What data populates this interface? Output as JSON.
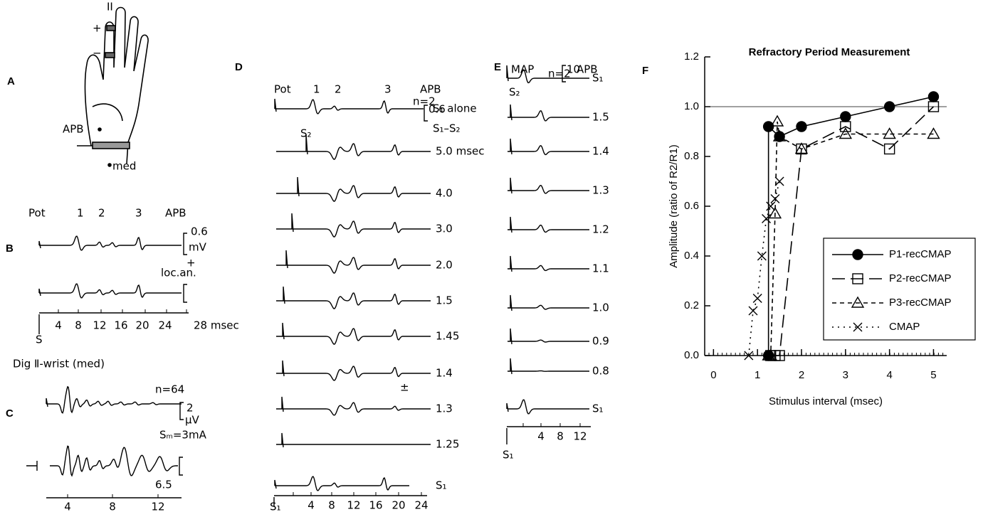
{
  "panels": {
    "A": {
      "letter": "A",
      "labels": [
        "II",
        "+",
        "−",
        "APB",
        "med"
      ]
    },
    "B": {
      "letter": "B",
      "header": [
        "Pot",
        "1",
        "2",
        "3",
        "APB"
      ],
      "scale": [
        "0.6",
        "mV"
      ],
      "note": "loc.an.",
      "sign": "+",
      "ticks": [
        "4",
        "8",
        "12",
        "16",
        "20",
        "24",
        "28 msec"
      ],
      "stimulus": "S"
    },
    "C": {
      "letter": "C",
      "caption": "Dig Ⅱ-wrist (med)",
      "n": "n=64",
      "scale": [
        "2",
        "μV"
      ],
      "stim": "Sₘ=3mA",
      "gain": "6.5",
      "ticks": [
        "4",
        "8",
        "12"
      ]
    },
    "D": {
      "letter": "D",
      "header": [
        "Pot",
        "1",
        "2",
        "3",
        "APB"
      ],
      "n": "n=2",
      "scale": "0.6",
      "rows": [
        "S₁ alone",
        "S₁–S₂",
        "5.0 msec",
        "4.0",
        "3.0",
        "2.0",
        "1.5",
        "1.45",
        "1.4",
        "1.3",
        "1.25",
        "S₁"
      ],
      "s2": "S₂",
      "pm": "±",
      "ticks": [
        "4",
        "8",
        "12",
        "16",
        "20",
        "24"
      ],
      "stimulus": "S₁"
    },
    "E": {
      "letter": "E",
      "header": [
        "MAP",
        "APB"
      ],
      "n": "n=2",
      "scale": "10",
      "rows": [
        "S₁",
        "1.5",
        "1.4",
        "1.3",
        "1.2",
        "1.1",
        "1.0",
        "0.9",
        "0.8",
        "S₁"
      ],
      "s2": "S₂",
      "ticks": [
        "4",
        "8",
        "12"
      ],
      "stimulus": "S₁"
    },
    "F": {
      "letter": "F"
    }
  },
  "chart_data": {
    "type": "line",
    "title": "Refractory Period Measurement",
    "x_label": "Stimulus interval (msec)",
    "y_label": "Amplitude (ratio of R2/R1)",
    "xlim": [
      -0.2,
      5.3
    ],
    "ylim": [
      0,
      1.2
    ],
    "xticks": [
      0,
      1,
      2,
      3,
      4,
      5
    ],
    "yticks": [
      {
        "value": 0,
        "label": "0.0"
      },
      0.2,
      0.4,
      0.6,
      0.8,
      {
        "value": 1,
        "label": "1.0"
      },
      1.2
    ],
    "hline": 1,
    "legend": "right",
    "series": [
      {
        "name": "P1-recCMAP",
        "color": "#000000",
        "marker": "circle",
        "dash": "solid",
        "x": [
          1.25,
          1.25,
          1.5,
          2,
          3,
          4,
          5
        ],
        "values": [
          0,
          0.92,
          0.88,
          0.92,
          0.96,
          1.0,
          1.04
        ]
      },
      {
        "name": "P2-recCMAP",
        "color": "#000000",
        "marker": "square",
        "dash": "long",
        "x": [
          1.3,
          1.4,
          1.5,
          2,
          3,
          4,
          5
        ],
        "values": [
          0,
          0,
          0,
          0.83,
          0.92,
          0.83,
          1.0
        ]
      },
      {
        "name": "P3-recCMAP",
        "color": "#000000",
        "marker": "triangle",
        "dash": "short",
        "x": [
          1.25,
          1.3,
          1.4,
          1.45,
          1.5,
          2,
          3,
          4,
          5
        ],
        "values": [
          0,
          0,
          0.57,
          0.94,
          0.88,
          0.83,
          0.89,
          0.89,
          0.89
        ]
      },
      {
        "name": "CMAP",
        "color": "#000000",
        "marker": "x",
        "dash": "dot",
        "x": [
          0.8,
          0.9,
          1.0,
          1.1,
          1.2,
          1.3,
          1.4,
          1.5
        ],
        "values": [
          0,
          0.18,
          0.23,
          0.4,
          0.55,
          0.6,
          0.63,
          0.7
        ]
      }
    ]
  }
}
